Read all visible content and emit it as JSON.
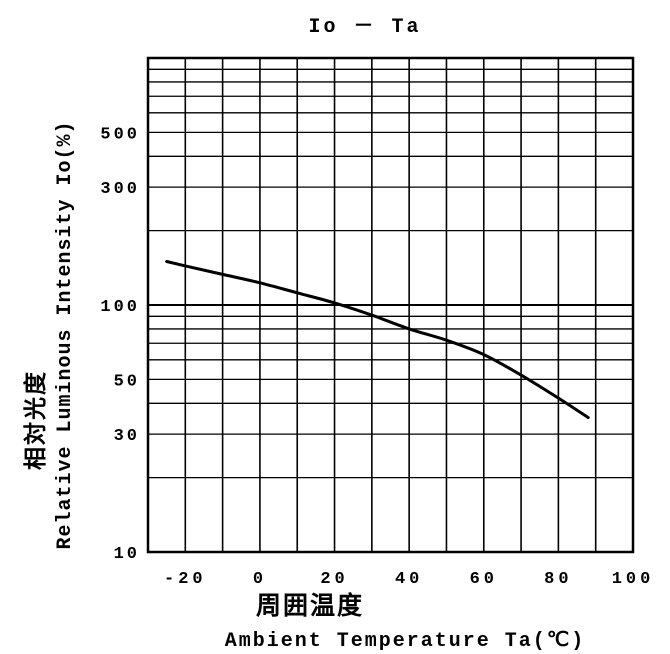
{
  "chart_data": {
    "type": "line",
    "title": "Io － Ta",
    "xlabel_jp": "周囲温度",
    "xlabel": "Ambient Temperature Ta(℃)",
    "ylabel_jp": "相対光度",
    "ylabel": "Relative Luminous Intensity Io(%)",
    "x_scale": "linear",
    "y_scale": "log",
    "xlim": [
      -30,
      100
    ],
    "ylim": [
      10,
      1000
    ],
    "x_ticks": [
      -20,
      0,
      20,
      40,
      60,
      80,
      100
    ],
    "x_tick_labels": [
      "-20",
      "0",
      "20",
      "40",
      "60",
      "80",
      "100"
    ],
    "y_tick_labels": [
      {
        "value": 10,
        "label": "10"
      },
      {
        "value": 30,
        "label": "30"
      },
      {
        "value": 50,
        "label": "50"
      },
      {
        "value": 100,
        "label": "100"
      },
      {
        "value": 300,
        "label": "300"
      },
      {
        "value": 500,
        "label": "500"
      }
    ],
    "grid": true,
    "series": [
      {
        "x": [
          -25,
          -20,
          -10,
          0,
          10,
          20,
          30,
          40,
          50,
          60,
          70,
          80,
          88
        ],
        "y": [
          150,
          144,
          133,
          123,
          112,
          102,
          91,
          80,
          72,
          63,
          52,
          42,
          35
        ]
      }
    ]
  }
}
